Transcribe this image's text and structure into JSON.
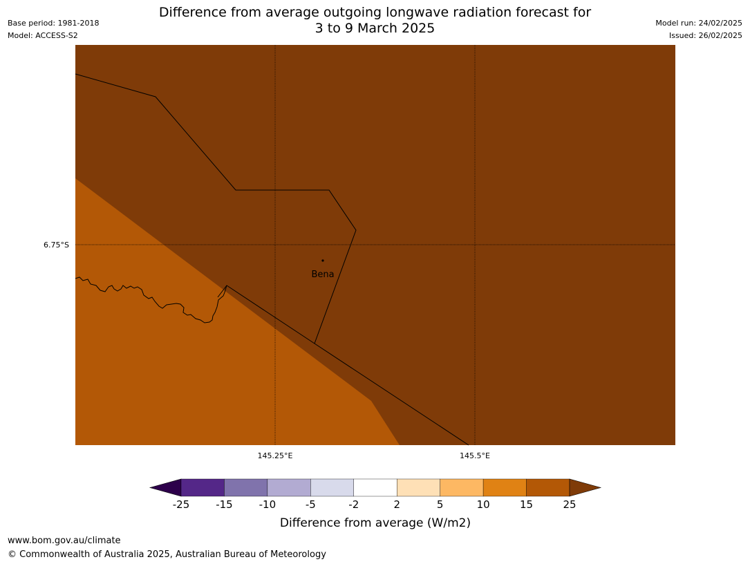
{
  "header": {
    "title_line1": "Difference from average outgoing longwave radiation forecast for",
    "title_line2": "3 to 9 March 2025",
    "base_period": "Base period: 1981-2018",
    "model": "Model: ACCESS-S2",
    "model_run": "Model run: 24/02/2025",
    "issued": "Issued: 26/02/2025"
  },
  "map": {
    "lat_label": "6.75°S",
    "lon_labels": [
      "145.25°E",
      "145.5°E"
    ],
    "place_label": "Bena",
    "colors": {
      "class_10_15": "#e08214",
      "class_15_25": "#b35806",
      "class_above_25": "#7f3b08",
      "boundary": "#000000"
    }
  },
  "colorbar": {
    "label": "Difference from average (W/m2)",
    "ticks": [
      "-25",
      "-15",
      "-10",
      "-5",
      "-2",
      "2",
      "5",
      "10",
      "15",
      "25"
    ],
    "low_extend_color": "#2d004b",
    "high_extend_color": "#7f3b08",
    "segment_colors": [
      "#542788",
      "#8073ac",
      "#b2abd2",
      "#d8daeb",
      "#ffffff",
      "#fee0b6",
      "#fdb863",
      "#e08214",
      "#b35806"
    ]
  },
  "footer": {
    "url": "www.bom.gov.au/climate",
    "copyright": "© Commonwealth of Australia 2025, Australian Bureau of Meteorology"
  }
}
